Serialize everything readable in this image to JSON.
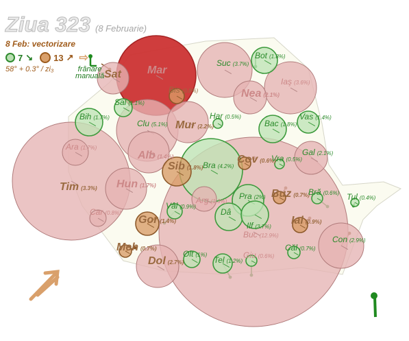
{
  "header": {
    "title": "Ziua 323",
    "subtitle": "(8 Februarie)",
    "date_note": "8 Feb: vectorizare",
    "legend": {
      "green_count": "7",
      "green_arrow": "↘",
      "brown_count": "13",
      "brown_arrow": "↗",
      "arrow_icon": "double-arrow-icon"
    },
    "angle": "58° + 0.3° / zi₃",
    "brake_label_line1": "frânare",
    "brake_label_line2": "manuală"
  },
  "colors": {
    "fill_pink": "#e6b4b4",
    "fill_red": "#cc3333",
    "fill_green": "#bfe4b6",
    "fill_brown": "#d89c66",
    "stroke_brown": "#8d5a2b",
    "stroke_green": "#3c9a3c",
    "text_brown": "#9a6a40",
    "text_green": "#2a8a2a",
    "text_pink": "#c88",
    "region": "#fbfbf0"
  },
  "counties": [
    {
      "name": "Mar",
      "pct": "",
      "kind": "red",
      "label_style": "big-pink"
    },
    {
      "name": "Sat",
      "pct": "",
      "kind": "pink",
      "label_style": "big-brown"
    },
    {
      "name": "Suc",
      "pct": "(3.7%)",
      "kind": "pink",
      "label_style": "green"
    },
    {
      "name": "Bot",
      "pct": "(1.8%)",
      "kind": "green",
      "label_style": "green"
    },
    {
      "name": "Iaş",
      "pct": "(3.6%)",
      "kind": "pink",
      "label_style": "pink"
    },
    {
      "name": "Nea",
      "pct": "(2.1%)",
      "kind": "pink",
      "label_style": "big-pink"
    },
    {
      "name": "Sal",
      "pct": "(1.1%)",
      "kind": "green",
      "label_style": "green"
    },
    {
      "name": "Bis",
      "pct": "(0.8%)",
      "kind": "brown",
      "label_style": "brown"
    },
    {
      "name": "Bih",
      "pct": "(1.7%)",
      "kind": "green",
      "label_style": "green"
    },
    {
      "name": "Clu",
      "pct": "(5.1%)",
      "kind": "pink",
      "label_style": "green"
    },
    {
      "name": "Mur",
      "pct": "(2.2%)",
      "kind": "pink",
      "label_style": "big-brown"
    },
    {
      "name": "Har",
      "pct": "(0.5%)",
      "kind": "green",
      "label_style": "green"
    },
    {
      "name": "Bac",
      "pct": "(1.8%)",
      "kind": "green",
      "label_style": "green"
    },
    {
      "name": "Vas",
      "pct": "(1.4%)",
      "kind": "green",
      "label_style": "green"
    },
    {
      "name": "Ara",
      "pct": "(1.7%)",
      "kind": "pink",
      "label_style": "pink"
    },
    {
      "name": "Alb",
      "pct": "(1.4%)",
      "kind": "pink",
      "label_style": "big-pink"
    },
    {
      "name": "Sib",
      "pct": "(1.8%)",
      "kind": "brown",
      "label_style": "big-brown"
    },
    {
      "name": "Bra",
      "pct": "(4.2%)",
      "kind": "green",
      "label_style": "green"
    },
    {
      "name": "Cov",
      "pct": "(0.6%)",
      "kind": "brown",
      "label_style": "big-brown"
    },
    {
      "name": "Vra",
      "pct": "(0.5%)",
      "kind": "green",
      "label_style": "green"
    },
    {
      "name": "Gal",
      "pct": "(2.1%)",
      "kind": "pink",
      "label_style": "green"
    },
    {
      "name": "Tim",
      "pct": "(3.3%)",
      "kind": "pink",
      "label_style": "big-brown"
    },
    {
      "name": "Hun",
      "pct": "(1.7%)",
      "kind": "pink",
      "label_style": "big-pink"
    },
    {
      "name": "Arg",
      "pct": "(1.3%)",
      "kind": "pink",
      "label_style": "pink"
    },
    {
      "name": "Pra",
      "pct": "(2%)",
      "kind": "green",
      "label_style": "green"
    },
    {
      "name": "Buz",
      "pct": "(0.7%)",
      "kind": "brown",
      "label_style": "big-brown"
    },
    {
      "name": "Bră",
      "pct": "(0.6%)",
      "kind": "green",
      "label_style": "green"
    },
    {
      "name": "Tul",
      "pct": "(0.4%)",
      "kind": "green",
      "label_style": "green"
    },
    {
      "name": "Car",
      "pct": "(0.8%)",
      "kind": "pink",
      "label_style": "pink"
    },
    {
      "name": "Vâl",
      "pct": "(0.9%)",
      "kind": "green",
      "label_style": "green"
    },
    {
      "name": "Dâ",
      "pct": "",
      "kind": "green",
      "label_style": "green"
    },
    {
      "name": "Gor",
      "pct": "(1.4%)",
      "kind": "brown",
      "label_style": "big-brown"
    },
    {
      "name": "Ilf",
      "pct": "(3.7%)",
      "kind": "green",
      "label_style": "green"
    },
    {
      "name": "Buc",
      "pct": "(12.9%)",
      "kind": "pink",
      "label_style": "pink"
    },
    {
      "name": "Ial",
      "pct": "(0.9%)",
      "kind": "brown",
      "label_style": "big-brown"
    },
    {
      "name": "Con",
      "pct": "(2.9%)",
      "kind": "pink",
      "label_style": "green"
    },
    {
      "name": "Meh",
      "pct": "(0.7%)",
      "kind": "brown",
      "label_style": "big-brown"
    },
    {
      "name": "Dol",
      "pct": "(2.7%)",
      "kind": "pink",
      "label_style": "big-brown"
    },
    {
      "name": "Olt",
      "pct": "(1%)",
      "kind": "green",
      "label_style": "green"
    },
    {
      "name": "Tel",
      "pct": "(1.2%)",
      "kind": "green",
      "label_style": "green"
    },
    {
      "name": "Giu",
      "pct": "(0.6%)",
      "kind": "green",
      "label_style": "pink"
    },
    {
      "name": "Căl",
      "pct": "(0.7%)",
      "kind": "green",
      "label_style": "green"
    }
  ]
}
